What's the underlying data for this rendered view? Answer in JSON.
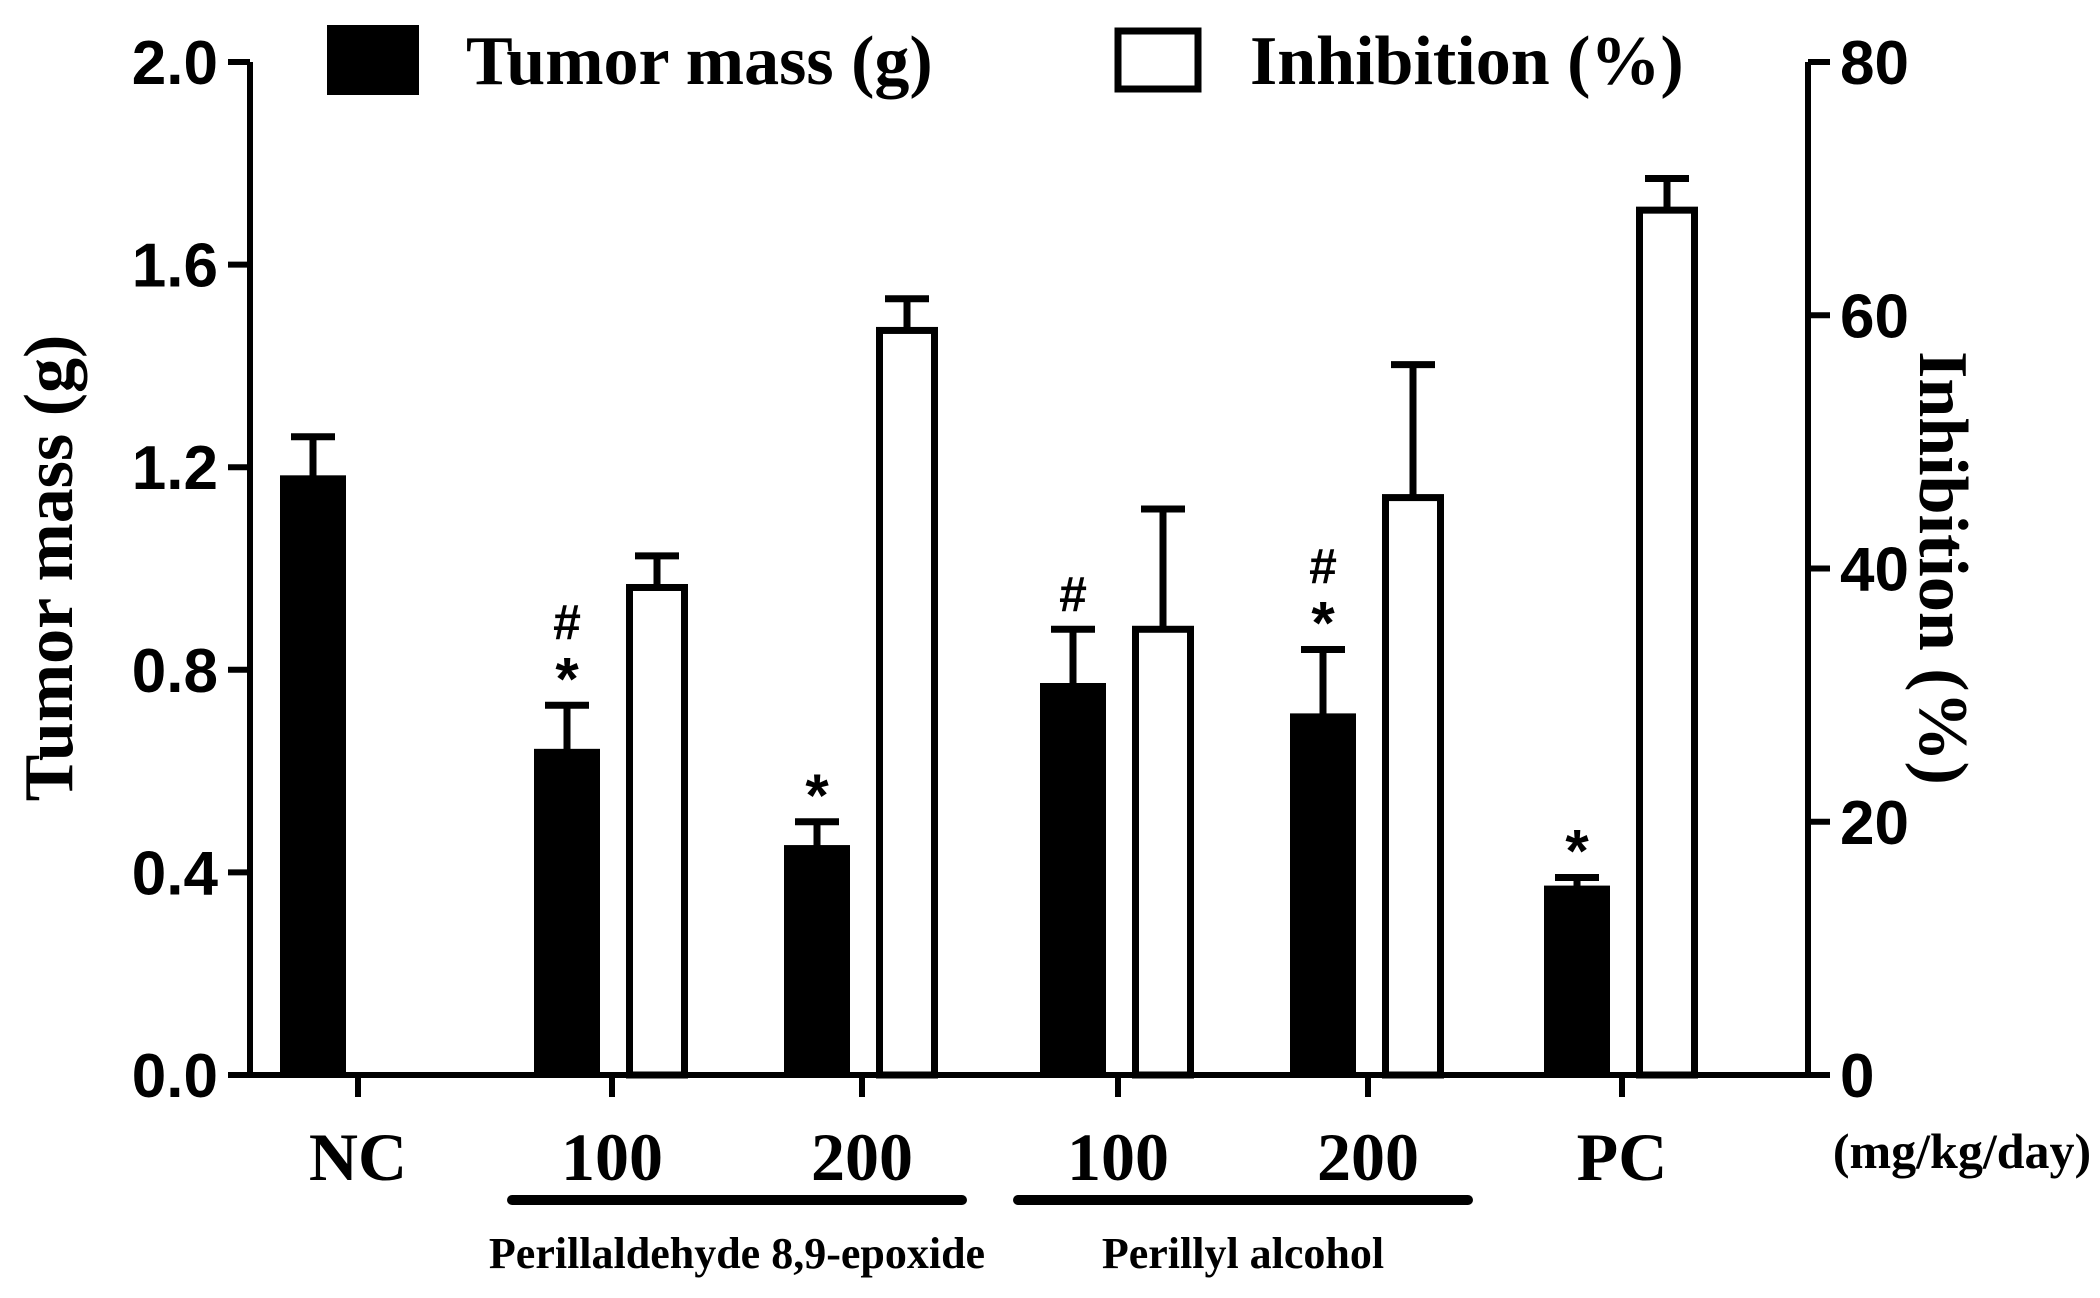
{
  "chart_data": {
    "type": "bar",
    "legend": {
      "placement": "top",
      "entries": [
        {
          "name": "Tumor mass (g)",
          "style": "filled"
        },
        {
          "name": "Inhibition (%)",
          "style": "open"
        }
      ]
    },
    "categories": [
      "NC",
      "100",
      "200",
      "100",
      "200",
      "PC"
    ],
    "x_unit_label": "(mg/kg/day)",
    "group_labels": [
      {
        "label": "Perillaldehyde 8,9-epoxide",
        "categories": [
          1,
          2
        ]
      },
      {
        "label": "Perillyl alcohol",
        "categories": [
          3,
          4
        ]
      }
    ],
    "ylabel": "Tumor mass (g)",
    "ylim": [
      0,
      2.0
    ],
    "yticks": [
      "0.0",
      "0.4",
      "0.8",
      "1.2",
      "1.6",
      "2.0"
    ],
    "y2label": "Inhibition (%)",
    "y2lim": [
      0,
      80
    ],
    "y2ticks": [
      "0",
      "20",
      "40",
      "60",
      "80"
    ],
    "series": [
      {
        "name": "Tumor mass (g)",
        "axis": "left",
        "fill": "#000000",
        "values": [
          1.18,
          0.64,
          0.45,
          0.77,
          0.71,
          0.37
        ],
        "errors": [
          0.08,
          0.09,
          0.05,
          0.11,
          0.13,
          0.02
        ],
        "annotations": [
          [],
          [
            "#",
            "*"
          ],
          [
            "*"
          ],
          [
            "#"
          ],
          [
            "#",
            "*"
          ],
          [
            "*"
          ]
        ]
      },
      {
        "name": "Inhibition (%)",
        "axis": "right",
        "fill": "#ffffff",
        "values": [
          null,
          38.5,
          58.8,
          35.2,
          45.6,
          68.3
        ],
        "errors": [
          null,
          2.5,
          2.5,
          9.5,
          10.5,
          2.5
        ]
      }
    ]
  }
}
